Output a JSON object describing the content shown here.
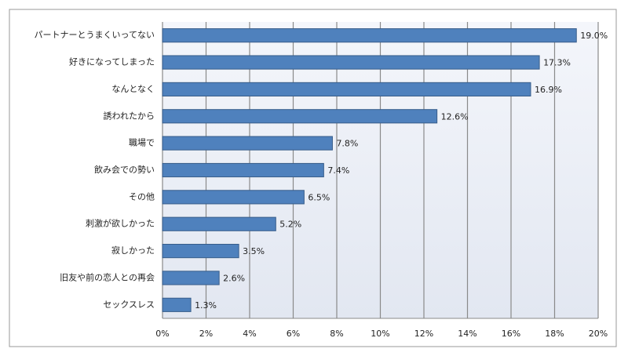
{
  "chart_data": {
    "type": "bar",
    "orientation": "horizontal",
    "categories": [
      "パートナーとうまくいってない",
      "好きになってしまった",
      "なんとなく",
      "誘われたから",
      "職場で",
      "飲み会での勢い",
      "その他",
      "刺激が欲しかった",
      "寂しかった",
      "旧友や前の恋人との再会",
      "セックスレス"
    ],
    "values": [
      19.0,
      17.3,
      16.9,
      12.6,
      7.8,
      7.4,
      6.5,
      5.2,
      3.5,
      2.6,
      1.3
    ],
    "value_labels": [
      "19.0%",
      "17.3%",
      "16.9%",
      "12.6%",
      "7.8%",
      "7.4%",
      "6.5%",
      "5.2%",
      "3.5%",
      "2.6%",
      "1.3%"
    ],
    "color": "#4f81bd",
    "xlim": [
      0,
      20
    ],
    "xticks": [
      {
        "value": 0,
        "label": "0%"
      },
      {
        "value": 2,
        "label": "2%"
      },
      {
        "value": 4,
        "label": "4%"
      },
      {
        "value": 6,
        "label": "6%"
      },
      {
        "value": 8,
        "label": "8%"
      },
      {
        "value": 10,
        "label": "10%"
      },
      {
        "value": 12,
        "label": "12%"
      },
      {
        "value": 14,
        "label": "14%"
      },
      {
        "value": 16,
        "label": "16%"
      },
      {
        "value": 18,
        "label": "18%"
      },
      {
        "value": 20,
        "label": "20%"
      }
    ],
    "grid": true
  }
}
